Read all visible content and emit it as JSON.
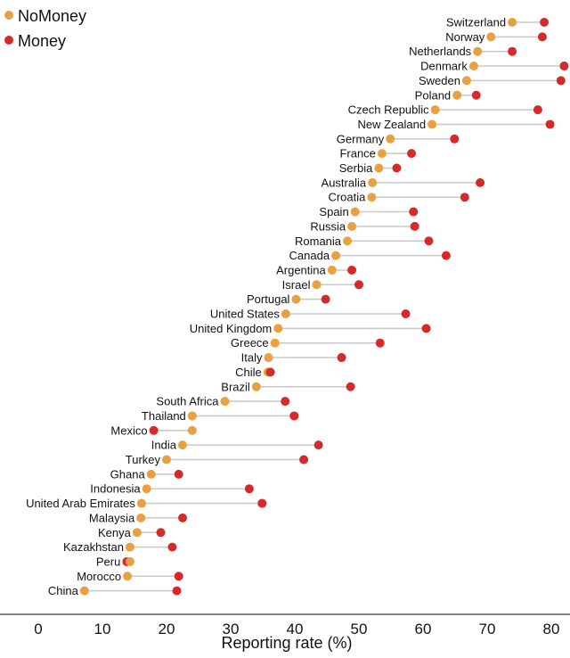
{
  "chart_data": {
    "type": "dumbbell",
    "xlabel": "Reporting rate (%)",
    "ylabel": "",
    "title": "",
    "xlim": [
      -5,
      82
    ],
    "xticks": [
      0,
      10,
      20,
      30,
      40,
      50,
      60,
      70,
      80
    ],
    "grid": false,
    "legend_position": "top-left",
    "colors": {
      "NoMoney": "#e8a040",
      "Money": "#d42a2a",
      "connector": "#c8c8c8"
    },
    "series": [
      {
        "name": "NoMoney",
        "key": "nomoney"
      },
      {
        "name": "Money",
        "key": "money"
      }
    ],
    "rows": [
      {
        "country": "Switzerland",
        "nomoney": 73.9,
        "money": 78.9
      },
      {
        "country": "Norway",
        "nomoney": 70.6,
        "money": 78.6
      },
      {
        "country": "Netherlands",
        "nomoney": 68.5,
        "money": 73.9
      },
      {
        "country": "Denmark",
        "nomoney": 67.9,
        "money": 82.0
      },
      {
        "country": "Sweden",
        "nomoney": 66.8,
        "money": 81.5
      },
      {
        "country": "Poland",
        "nomoney": 65.3,
        "money": 68.3
      },
      {
        "country": "Czech Republic",
        "nomoney": 61.9,
        "money": 77.9
      },
      {
        "country": "New Zealand",
        "nomoney": 61.4,
        "money": 79.8
      },
      {
        "country": "Germany",
        "nomoney": 54.9,
        "money": 64.9
      },
      {
        "country": "France",
        "nomoney": 53.6,
        "money": 58.2
      },
      {
        "country": "Serbia",
        "nomoney": 53.1,
        "money": 55.9
      },
      {
        "country": "Australia",
        "nomoney": 52.1,
        "money": 68.9
      },
      {
        "country": "Croatia",
        "nomoney": 52.0,
        "money": 66.5
      },
      {
        "country": "Spain",
        "nomoney": 49.4,
        "money": 58.5
      },
      {
        "country": "Russia",
        "nomoney": 48.9,
        "money": 58.7
      },
      {
        "country": "Romania",
        "nomoney": 48.2,
        "money": 60.9
      },
      {
        "country": "Canada",
        "nomoney": 46.4,
        "money": 63.6
      },
      {
        "country": "Argentina",
        "nomoney": 45.8,
        "money": 48.9
      },
      {
        "country": "Israel",
        "nomoney": 43.4,
        "money": 50.0
      },
      {
        "country": "Portugal",
        "nomoney": 40.2,
        "money": 44.8
      },
      {
        "country": "United States",
        "nomoney": 38.6,
        "money": 57.3
      },
      {
        "country": "United Kingdom",
        "nomoney": 37.4,
        "money": 60.5
      },
      {
        "country": "Greece",
        "nomoney": 36.9,
        "money": 53.3
      },
      {
        "country": "Italy",
        "nomoney": 35.9,
        "money": 47.3
      },
      {
        "country": "Chile",
        "nomoney": 35.8,
        "money": 36.2
      },
      {
        "country": "Brazil",
        "nomoney": 34.0,
        "money": 48.7
      },
      {
        "country": "South Africa",
        "nomoney": 29.1,
        "money": 38.5
      },
      {
        "country": "Thailand",
        "nomoney": 24.0,
        "money": 39.9
      },
      {
        "country": "Mexico",
        "nomoney": 24.0,
        "money": 18.0
      },
      {
        "country": "India",
        "nomoney": 22.5,
        "money": 43.7
      },
      {
        "country": "Turkey",
        "nomoney": 20.0,
        "money": 41.4
      },
      {
        "country": "Ghana",
        "nomoney": 17.6,
        "money": 21.9
      },
      {
        "country": "Indonesia",
        "nomoney": 16.9,
        "money": 32.9
      },
      {
        "country": "United Arab Emirates",
        "nomoney": 16.1,
        "money": 34.9
      },
      {
        "country": "Malaysia",
        "nomoney": 16.0,
        "money": 22.5
      },
      {
        "country": "Kenya",
        "nomoney": 15.4,
        "money": 19.1
      },
      {
        "country": "Kazakhstan",
        "nomoney": 14.3,
        "money": 20.9
      },
      {
        "country": "Peru",
        "nomoney": 14.3,
        "money": 13.8
      },
      {
        "country": "Morocco",
        "nomoney": 13.9,
        "money": 21.9
      },
      {
        "country": "China",
        "nomoney": 7.2,
        "money": 21.6
      }
    ]
  }
}
